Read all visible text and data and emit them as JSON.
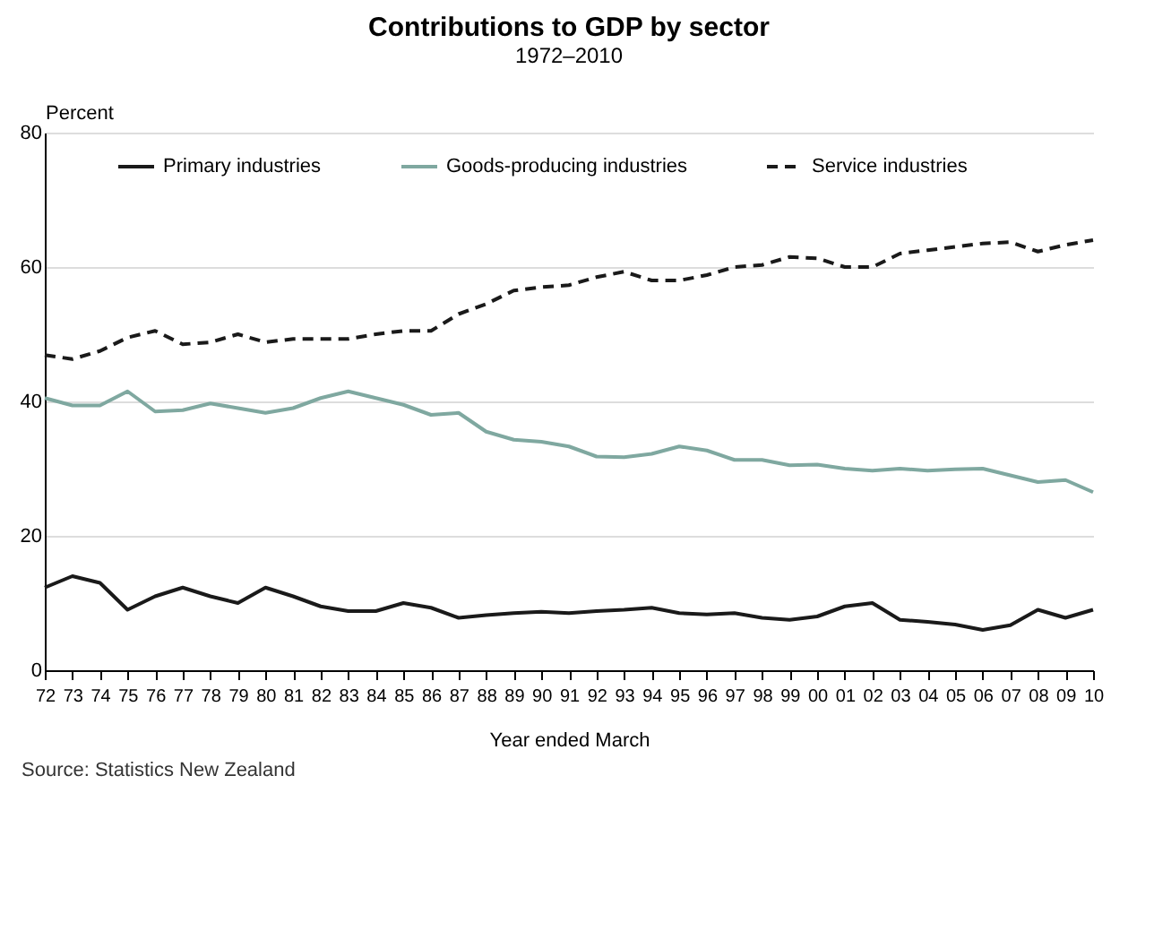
{
  "chart_data": {
    "type": "line",
    "title": "Contributions to GDP by sector",
    "subtitle": "1972–2010",
    "xlabel": "Year ended March",
    "ylabel": "Percent",
    "annotations": [
      "Source: Statistics New Zealand"
    ],
    "categories": [
      "72",
      "73",
      "74",
      "75",
      "76",
      "77",
      "78",
      "79",
      "80",
      "81",
      "82",
      "83",
      "84",
      "85",
      "86",
      "87",
      "88",
      "89",
      "90",
      "91",
      "92",
      "93",
      "94",
      "95",
      "96",
      "97",
      "98",
      "99",
      "00",
      "01",
      "02",
      "03",
      "04",
      "05",
      "06",
      "07",
      "08",
      "09",
      "10"
    ],
    "ylim": [
      0,
      80
    ],
    "yticks": [
      0,
      20,
      40,
      60,
      80
    ],
    "grid": "y",
    "legend": "top",
    "series": [
      {
        "name": "Primary industries",
        "color": "#1a1a1a",
        "line_style": "solid",
        "values": [
          12.3,
          14,
          13,
          9,
          11,
          12.3,
          11,
          10,
          12.3,
          11,
          9.5,
          8.8,
          8.8,
          10,
          9.3,
          7.8,
          8.2,
          8.5,
          8.7,
          8.5,
          8.8,
          9,
          9.3,
          8.5,
          8.3,
          8.5,
          7.8,
          7.5,
          8,
          9.5,
          10,
          7.5,
          7.2,
          6.8,
          6,
          6.7,
          9,
          7.8,
          9
        ]
      },
      {
        "name": "Goods-producing industries",
        "color": "#7fa8a0",
        "line_style": "solid",
        "values": [
          40.5,
          39.4,
          39.4,
          41.5,
          38.5,
          38.7,
          39.7,
          39,
          38.3,
          39,
          40.5,
          41.5,
          40.5,
          39.5,
          38,
          38.3,
          35.5,
          34.3,
          34,
          33.3,
          31.8,
          31.7,
          32.2,
          33.3,
          32.7,
          31.3,
          31.3,
          30.5,
          30.6,
          30,
          29.7,
          30,
          29.7,
          29.9,
          30,
          29,
          28,
          28.3,
          26.5
        ]
      },
      {
        "name": "Service industries",
        "color": "#1a1a1a",
        "line_style": "dashed",
        "values": [
          46.9,
          46.3,
          47.5,
          49.5,
          50.5,
          48.5,
          48.8,
          50,
          48.8,
          49.3,
          49.3,
          49.3,
          50,
          50.5,
          50.5,
          53,
          54.5,
          56.5,
          57,
          57.3,
          58.5,
          59.3,
          58,
          58,
          58.8,
          60,
          60.3,
          61.5,
          61.3,
          60,
          60,
          62,
          62.5,
          63,
          63.5,
          63.7,
          62.3,
          63.3,
          64
        ]
      }
    ]
  }
}
